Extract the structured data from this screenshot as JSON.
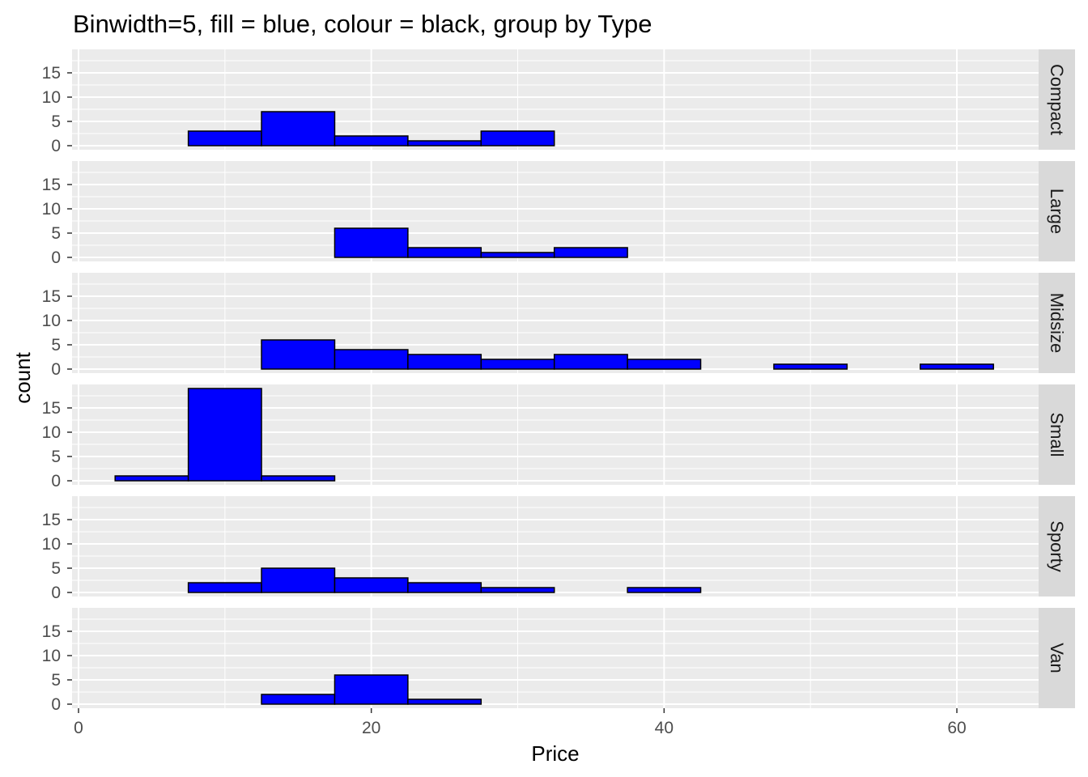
{
  "chart_data": {
    "type": "bar",
    "subtype": "faceted-histogram",
    "title": "Binwidth=5, fill = blue, colour = black, group by Type",
    "xlabel": "Price",
    "ylabel": "count",
    "binwidth": 5,
    "bin_centers": [
      5,
      10,
      15,
      20,
      25,
      30,
      35,
      40,
      45,
      50,
      55,
      60
    ],
    "xlim": [
      0,
      65
    ],
    "ylim": [
      0,
      19
    ],
    "x_ticks": [
      0,
      20,
      40,
      60
    ],
    "y_ticks": [
      0,
      5,
      10,
      15
    ],
    "grid": true,
    "colors": {
      "fill": "#0000ff",
      "outline": "#000000",
      "panel": "#ebebeb",
      "strip": "#d9d9d9",
      "grid": "#ffffff"
    },
    "series": [
      {
        "name": "Compact",
        "values": [
          0,
          3,
          7,
          2,
          1,
          3,
          0,
          0,
          0,
          0,
          0,
          0
        ]
      },
      {
        "name": "Large",
        "values": [
          0,
          0,
          0,
          6,
          2,
          1,
          2,
          0,
          0,
          0,
          0,
          0
        ]
      },
      {
        "name": "Midsize",
        "values": [
          0,
          0,
          6,
          4,
          3,
          2,
          3,
          2,
          0,
          1,
          0,
          1
        ]
      },
      {
        "name": "Small",
        "values": [
          1,
          19,
          1,
          0,
          0,
          0,
          0,
          0,
          0,
          0,
          0,
          0
        ]
      },
      {
        "name": "Sporty",
        "values": [
          0,
          2,
          5,
          3,
          2,
          1,
          0,
          1,
          0,
          0,
          0,
          0
        ]
      },
      {
        "name": "Van",
        "values": [
          0,
          0,
          2,
          6,
          1,
          0,
          0,
          0,
          0,
          0,
          0,
          0
        ]
      }
    ]
  }
}
